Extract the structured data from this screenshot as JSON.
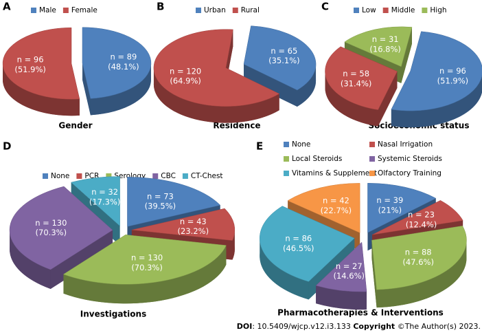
{
  "chart_data": [
    {
      "type": "pie",
      "panel": "A",
      "title": "Gender",
      "categories": [
        "Male",
        "Female"
      ],
      "colors": [
        "#4f81bd",
        "#c0504d"
      ],
      "values": [
        89,
        96
      ],
      "value_labels": [
        "n = 89",
        "n = 96"
      ],
      "percent_labels": [
        "(48.1%)",
        "(51.9%)"
      ]
    },
    {
      "type": "pie",
      "panel": "B",
      "title": "Residence",
      "categories": [
        "Urban",
        "Rural"
      ],
      "colors": [
        "#4f81bd",
        "#c0504d"
      ],
      "values": [
        65,
        120
      ],
      "value_labels": [
        "n = 65",
        "n = 120"
      ],
      "percent_labels": [
        "(35.1%)",
        "(64.9%)"
      ]
    },
    {
      "type": "pie",
      "panel": "C",
      "title": "Socioeconomic status",
      "categories": [
        "Low",
        "Middle",
        "High"
      ],
      "colors": [
        "#4f81bd",
        "#c0504d",
        "#9bbb59"
      ],
      "values": [
        96,
        58,
        31
      ],
      "value_labels": [
        "n = 96",
        "n = 58",
        "n = 31"
      ],
      "percent_labels": [
        "(51.9%)",
        "(31.4%)",
        "(16.8%)"
      ]
    },
    {
      "type": "pie",
      "panel": "D",
      "title": "Investigations",
      "categories": [
        "None",
        "PCR",
        "Serology",
        "CBC",
        "CT-Chest"
      ],
      "colors": [
        "#4f81bd",
        "#c0504d",
        "#9bbb59",
        "#8064a2",
        "#4bacc6"
      ],
      "values": [
        73,
        43,
        130,
        130,
        32
      ],
      "value_labels": [
        "n = 73",
        "n = 43",
        "n = 130",
        "n = 130",
        "n = 32"
      ],
      "percent_labels": [
        "(39.5%)",
        "(23.2%)",
        "(70.3%)",
        "(70.3%)",
        "(17.3%)"
      ]
    },
    {
      "type": "pie",
      "panel": "E",
      "title": "Pharmacotherapies & Interventions",
      "categories": [
        "None",
        "Nasal Irrigation",
        "Local Steroids",
        "Systemic Steroids",
        "Vitamins & Supplement",
        "Olfactory Training"
      ],
      "colors": [
        "#4f81bd",
        "#c0504d",
        "#9bbb59",
        "#8064a2",
        "#4bacc6",
        "#f79646"
      ],
      "values": [
        39,
        23,
        88,
        27,
        86,
        42
      ],
      "value_labels": [
        "n = 39",
        "n = 23",
        "n = 88",
        "n = 27",
        "n = 86",
        "n = 42"
      ],
      "percent_labels": [
        "(21%)",
        "(12.4%)",
        "(47.6%)",
        "(14.6%)",
        "(46.5%)",
        "(22.7%)"
      ]
    }
  ],
  "footer": {
    "doi_label": "DOI",
    "doi": ": 10.5409/wjcp.v12.i3.133",
    "copyright_label": "Copyright",
    "copyright": "©The Author(s) 2023."
  }
}
